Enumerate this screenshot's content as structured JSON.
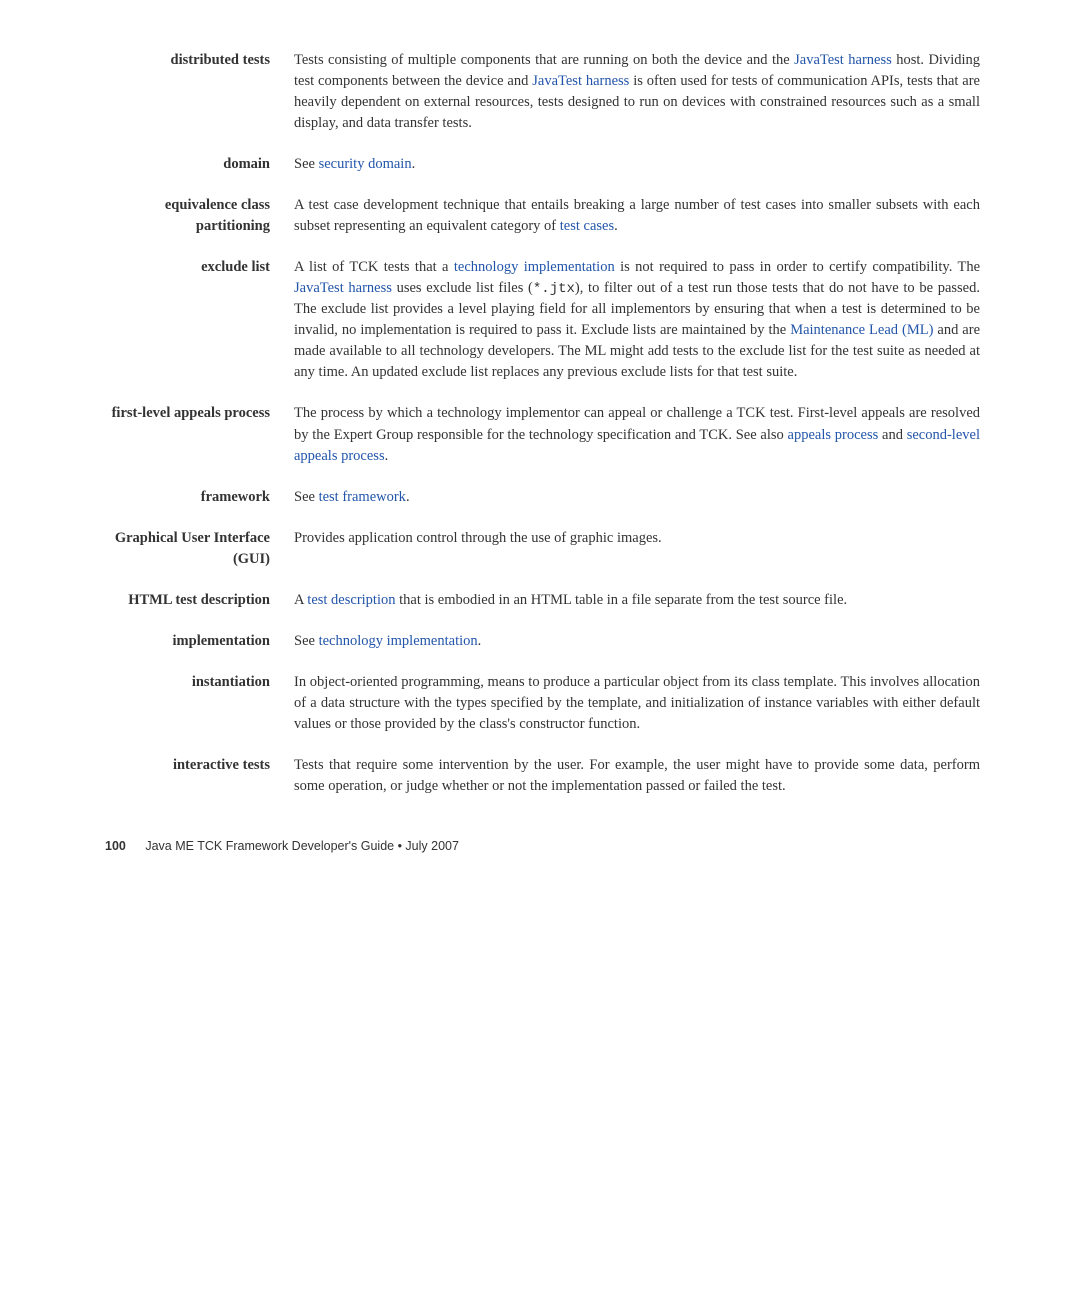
{
  "entries": [
    {
      "term": "distributed tests",
      "parts": [
        {
          "text": "Tests consisting of multiple components that are running on both the device and the "
        },
        {
          "text": "JavaTest harness",
          "link": true
        },
        {
          "text": " host. Dividing test components between the device and "
        },
        {
          "text": "JavaTest harness",
          "link": true
        },
        {
          "text": " is often used for tests of communication APIs, tests that are heavily dependent on external resources, tests designed to run on devices with constrained resources such as a small display, and data transfer tests."
        }
      ]
    },
    {
      "term": "domain",
      "parts": [
        {
          "text": "See "
        },
        {
          "text": "security domain",
          "link": true
        },
        {
          "text": "."
        }
      ]
    },
    {
      "term": "equivalence class partitioning",
      "parts": [
        {
          "text": "A test case development technique that entails breaking a large number of test cases into smaller subsets with each subset representing an equivalent category of "
        },
        {
          "text": "test cases",
          "link": true
        },
        {
          "text": "."
        }
      ]
    },
    {
      "term": "exclude list",
      "parts": [
        {
          "text": "A list of TCK tests that a "
        },
        {
          "text": "technology implementation",
          "link": true
        },
        {
          "text": " is not required to pass in order to certify compatibility. The "
        },
        {
          "text": "JavaTest harness",
          "link": true
        },
        {
          "text": " uses exclude list files ("
        },
        {
          "text": "*.jtx",
          "mono": true
        },
        {
          "text": "), to filter out of a test run those tests that do not have to be passed. The exclude list provides a level playing field for all implementors by ensuring that when a test is determined to be invalid, no implementation is required to pass it. Exclude lists are maintained by the "
        },
        {
          "text": "Maintenance Lead (ML)",
          "link": true
        },
        {
          "text": " and are made available to all technology developers. The ML might add tests to the exclude list for the test suite as needed at any time. An updated exclude list replaces any previous exclude lists for that test suite."
        }
      ]
    },
    {
      "term": "first-level appeals process",
      "parts": [
        {
          "text": "The process by which a technology implementor can appeal or challenge a TCK test. First-level appeals are resolved by the Expert Group responsible for the technology specification and TCK. See also "
        },
        {
          "text": "appeals process",
          "link": true
        },
        {
          "text": " and "
        },
        {
          "text": "second-level appeals process",
          "link": true
        },
        {
          "text": "."
        }
      ]
    },
    {
      "term": "framework",
      "parts": [
        {
          "text": "See "
        },
        {
          "text": "test framework",
          "link": true
        },
        {
          "text": "."
        }
      ]
    },
    {
      "term": "Graphical User Interface (GUI)",
      "parts": [
        {
          "text": "Provides application control through the use of graphic images."
        }
      ]
    },
    {
      "term": "HTML test description",
      "parts": [
        {
          "text": "A "
        },
        {
          "text": "test description",
          "link": true
        },
        {
          "text": " that is embodied in an HTML table in a file separate from the test source file."
        }
      ]
    },
    {
      "term": "implementation",
      "parts": [
        {
          "text": "See "
        },
        {
          "text": "technology implementation",
          "link": true
        },
        {
          "text": "."
        }
      ]
    },
    {
      "term": "instantiation",
      "parts": [
        {
          "text": "In object-oriented programming, means to produce a particular object from its class template. This involves allocation of a data structure with the types specified by the template, and initialization of instance variables with either default values or those provided by the class's constructor function."
        }
      ]
    },
    {
      "term": "interactive tests",
      "parts": [
        {
          "text": "Tests that require some intervention by the user. For example, the user might have to provide some data, perform some operation, or judge whether or not the implementation passed or failed the test."
        }
      ]
    }
  ],
  "footer": {
    "page_number": "100",
    "title": "Java ME TCK Framework Developer's Guide • July 2007"
  }
}
